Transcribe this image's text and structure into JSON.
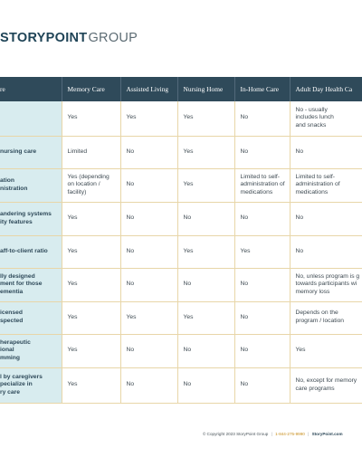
{
  "logo": {
    "bold": "STORYPOINT",
    "light": "GROUP"
  },
  "table": {
    "headers": [
      "re",
      "Memory Care",
      "Assisted Living",
      "Nursing Home",
      "In-Home Care",
      "Adult Day Health Ca"
    ],
    "rows": [
      {
        "label": [
          ""
        ],
        "cells": [
          "Yes",
          "Yes",
          "Yes",
          "No",
          "No - usually\nincludes lunch\nand snacks"
        ]
      },
      {
        "label": [
          "nursing care"
        ],
        "cells": [
          "Limited",
          "No",
          "Yes",
          "No",
          "No"
        ]
      },
      {
        "label": [
          "ation",
          "nistration"
        ],
        "cells": [
          "Yes  (depending\non location /\nfacility)",
          "No",
          "Yes",
          "Limited to self-\nadministration of\nmedications",
          "Limited to self-\nadministration of\nmedications"
        ]
      },
      {
        "label": [
          "andering systems",
          "ity features"
        ],
        "cells": [
          "Yes",
          "No",
          "No",
          "No",
          "No"
        ]
      },
      {
        "label": [
          "aff-to-client ratio"
        ],
        "cells": [
          "Yes",
          "No",
          "Yes",
          "Yes",
          "No"
        ]
      },
      {
        "label": [
          "lly designed",
          "ment for those",
          "ementia"
        ],
        "cells": [
          "Yes",
          "No",
          "No",
          "No",
          "No, unless program is g\ntowards participants wi\nmemory loss"
        ]
      },
      {
        "label": [
          "icensed",
          "spected"
        ],
        "cells": [
          "Yes",
          "Yes",
          "Yes",
          "No",
          "Depends on the\nprogram / location"
        ]
      },
      {
        "label": [
          "herapeutic",
          "ional",
          "mming"
        ],
        "cells": [
          "Yes",
          "No",
          "No",
          "No",
          "Yes"
        ]
      },
      {
        "label": [
          "l by caregivers",
          "pecialize in",
          "ry care"
        ],
        "cells": [
          "Yes",
          "No",
          "No",
          "No",
          "No, except for memory\ncare programs"
        ]
      }
    ]
  },
  "footer": {
    "copyright": "© Copyright 2023 StoryPoint Group",
    "sep": "|",
    "phone": "1-844-275-9990",
    "site": "StoryPoint.com"
  }
}
